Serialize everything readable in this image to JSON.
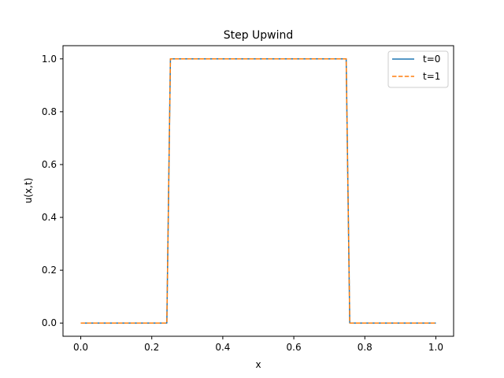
{
  "chart_data": {
    "type": "line",
    "title": "Step Upwind",
    "xlabel": "x",
    "ylabel": "u(x,t)",
    "xlim": [
      -0.05,
      1.05
    ],
    "ylim": [
      -0.05,
      1.05
    ],
    "xticks": [
      0.0,
      0.2,
      0.4,
      0.6,
      0.8,
      1.0
    ],
    "yticks": [
      0.0,
      0.2,
      0.4,
      0.6,
      0.8,
      1.0
    ],
    "xtick_labels": [
      "0.0",
      "0.2",
      "0.4",
      "0.6",
      "0.8",
      "1.0"
    ],
    "ytick_labels": [
      "0.0",
      "0.2",
      "0.4",
      "0.6",
      "0.8",
      "1.0"
    ],
    "grid": false,
    "legend_position": "top-right",
    "series": [
      {
        "name": "t=0",
        "color": "#1f77b4",
        "style": "solid",
        "x": [
          0.0,
          0.2424,
          0.2525,
          0.7475,
          0.7576,
          1.0
        ],
        "y": [
          0.0,
          0.0,
          1.0,
          1.0,
          0.0,
          0.0
        ]
      },
      {
        "name": "t=1",
        "color": "#ff7f0e",
        "style": "dashed",
        "x": [
          0.0,
          0.2424,
          0.2525,
          0.7475,
          0.7576,
          1.0
        ],
        "y": [
          0.0,
          0.0,
          1.0,
          1.0,
          0.0,
          0.0
        ]
      }
    ]
  }
}
